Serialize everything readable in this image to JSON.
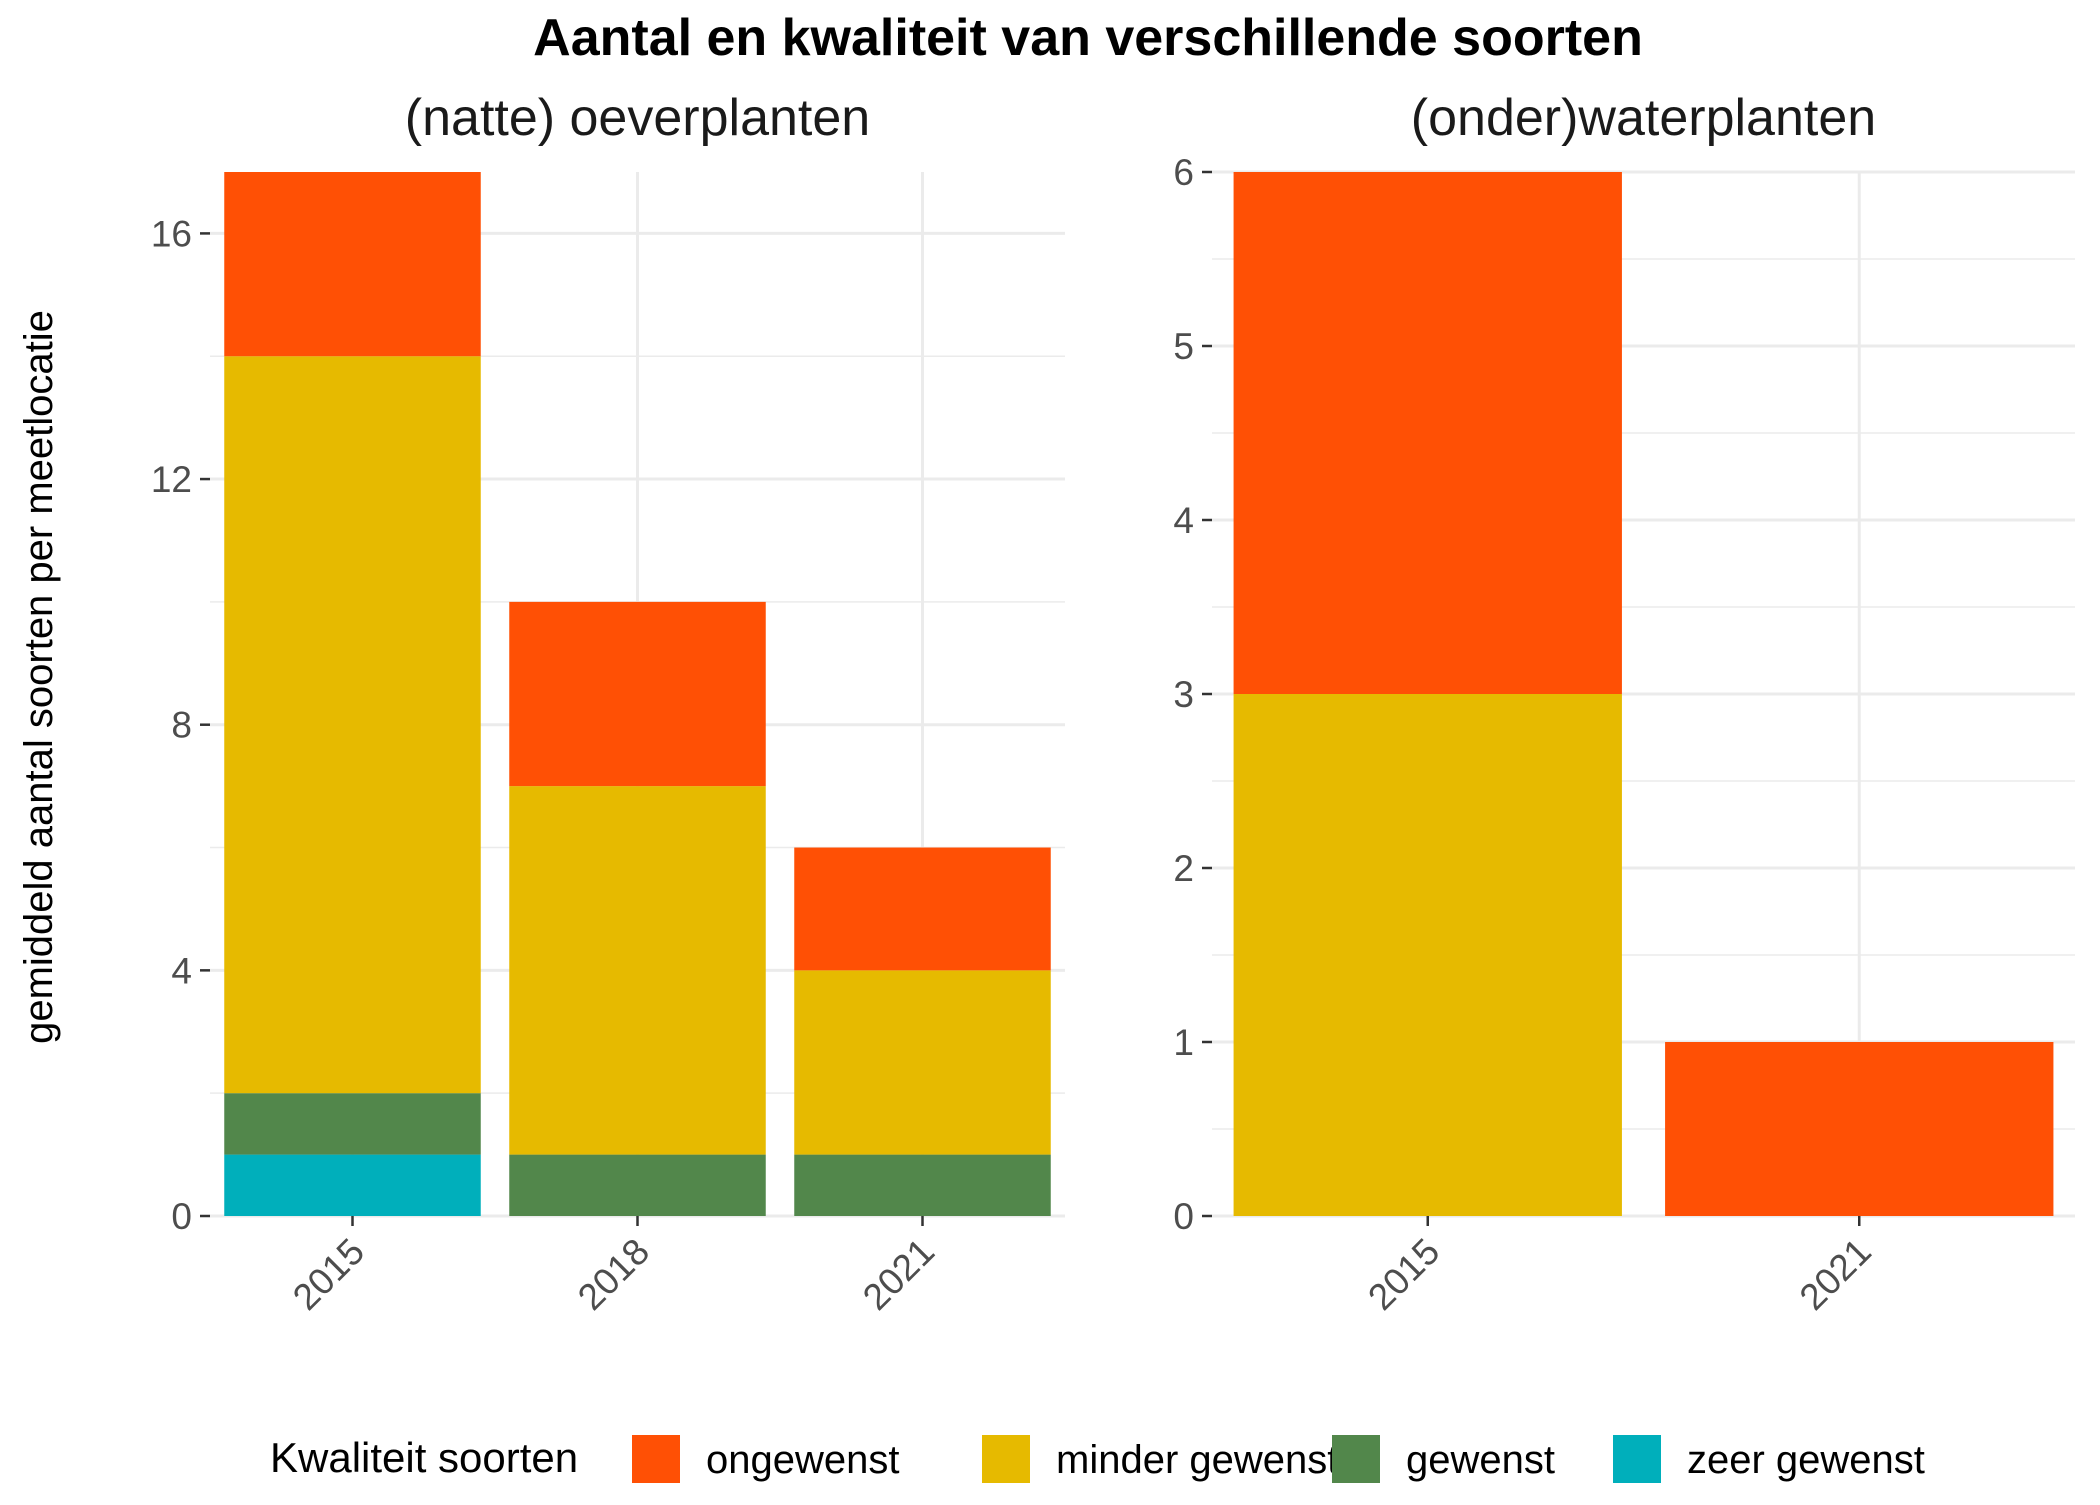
{
  "chart_data": {
    "type": "bar",
    "stacked": true,
    "title": "Aantal en kwaliteit van verschillende soorten",
    "ylabel": "gemiddeld aantal soorten per meetlocatie",
    "grid": true,
    "legend": {
      "title": "Kwaliteit soorten",
      "placement": "bottom",
      "entries": [
        {
          "name": "ongewenst",
          "color": "#FF5005"
        },
        {
          "name": "minder gewenst",
          "color": "#E6BA00"
        },
        {
          "name": "gewenst",
          "color": "#52874B"
        },
        {
          "name": "zeer gewenst",
          "color": "#00AFBB"
        }
      ]
    },
    "panels": [
      {
        "title": "(natte) oeverplanten",
        "categories": [
          "2015",
          "2018",
          "2021"
        ],
        "ylim": [
          0,
          17
        ],
        "yticks": [
          0,
          4,
          8,
          12,
          16
        ],
        "series": [
          {
            "name": "zeer gewenst",
            "values": [
              1,
              0,
              0
            ]
          },
          {
            "name": "gewenst",
            "values": [
              1,
              1,
              1
            ]
          },
          {
            "name": "minder gewenst",
            "values": [
              12,
              6,
              3
            ]
          },
          {
            "name": "ongewenst",
            "values": [
              3,
              3,
              2
            ]
          }
        ]
      },
      {
        "title": "(onder)waterplanten",
        "categories": [
          "2015",
          "2021"
        ],
        "ylim": [
          0,
          6
        ],
        "yticks": [
          0,
          1,
          2,
          3,
          4,
          5,
          6
        ],
        "series": [
          {
            "name": "zeer gewenst",
            "values": [
              0,
              0
            ]
          },
          {
            "name": "gewenst",
            "values": [
              0,
              0
            ]
          },
          {
            "name": "minder gewenst",
            "values": [
              3,
              0
            ]
          },
          {
            "name": "ongewenst",
            "values": [
              3,
              1
            ]
          }
        ]
      }
    ]
  }
}
